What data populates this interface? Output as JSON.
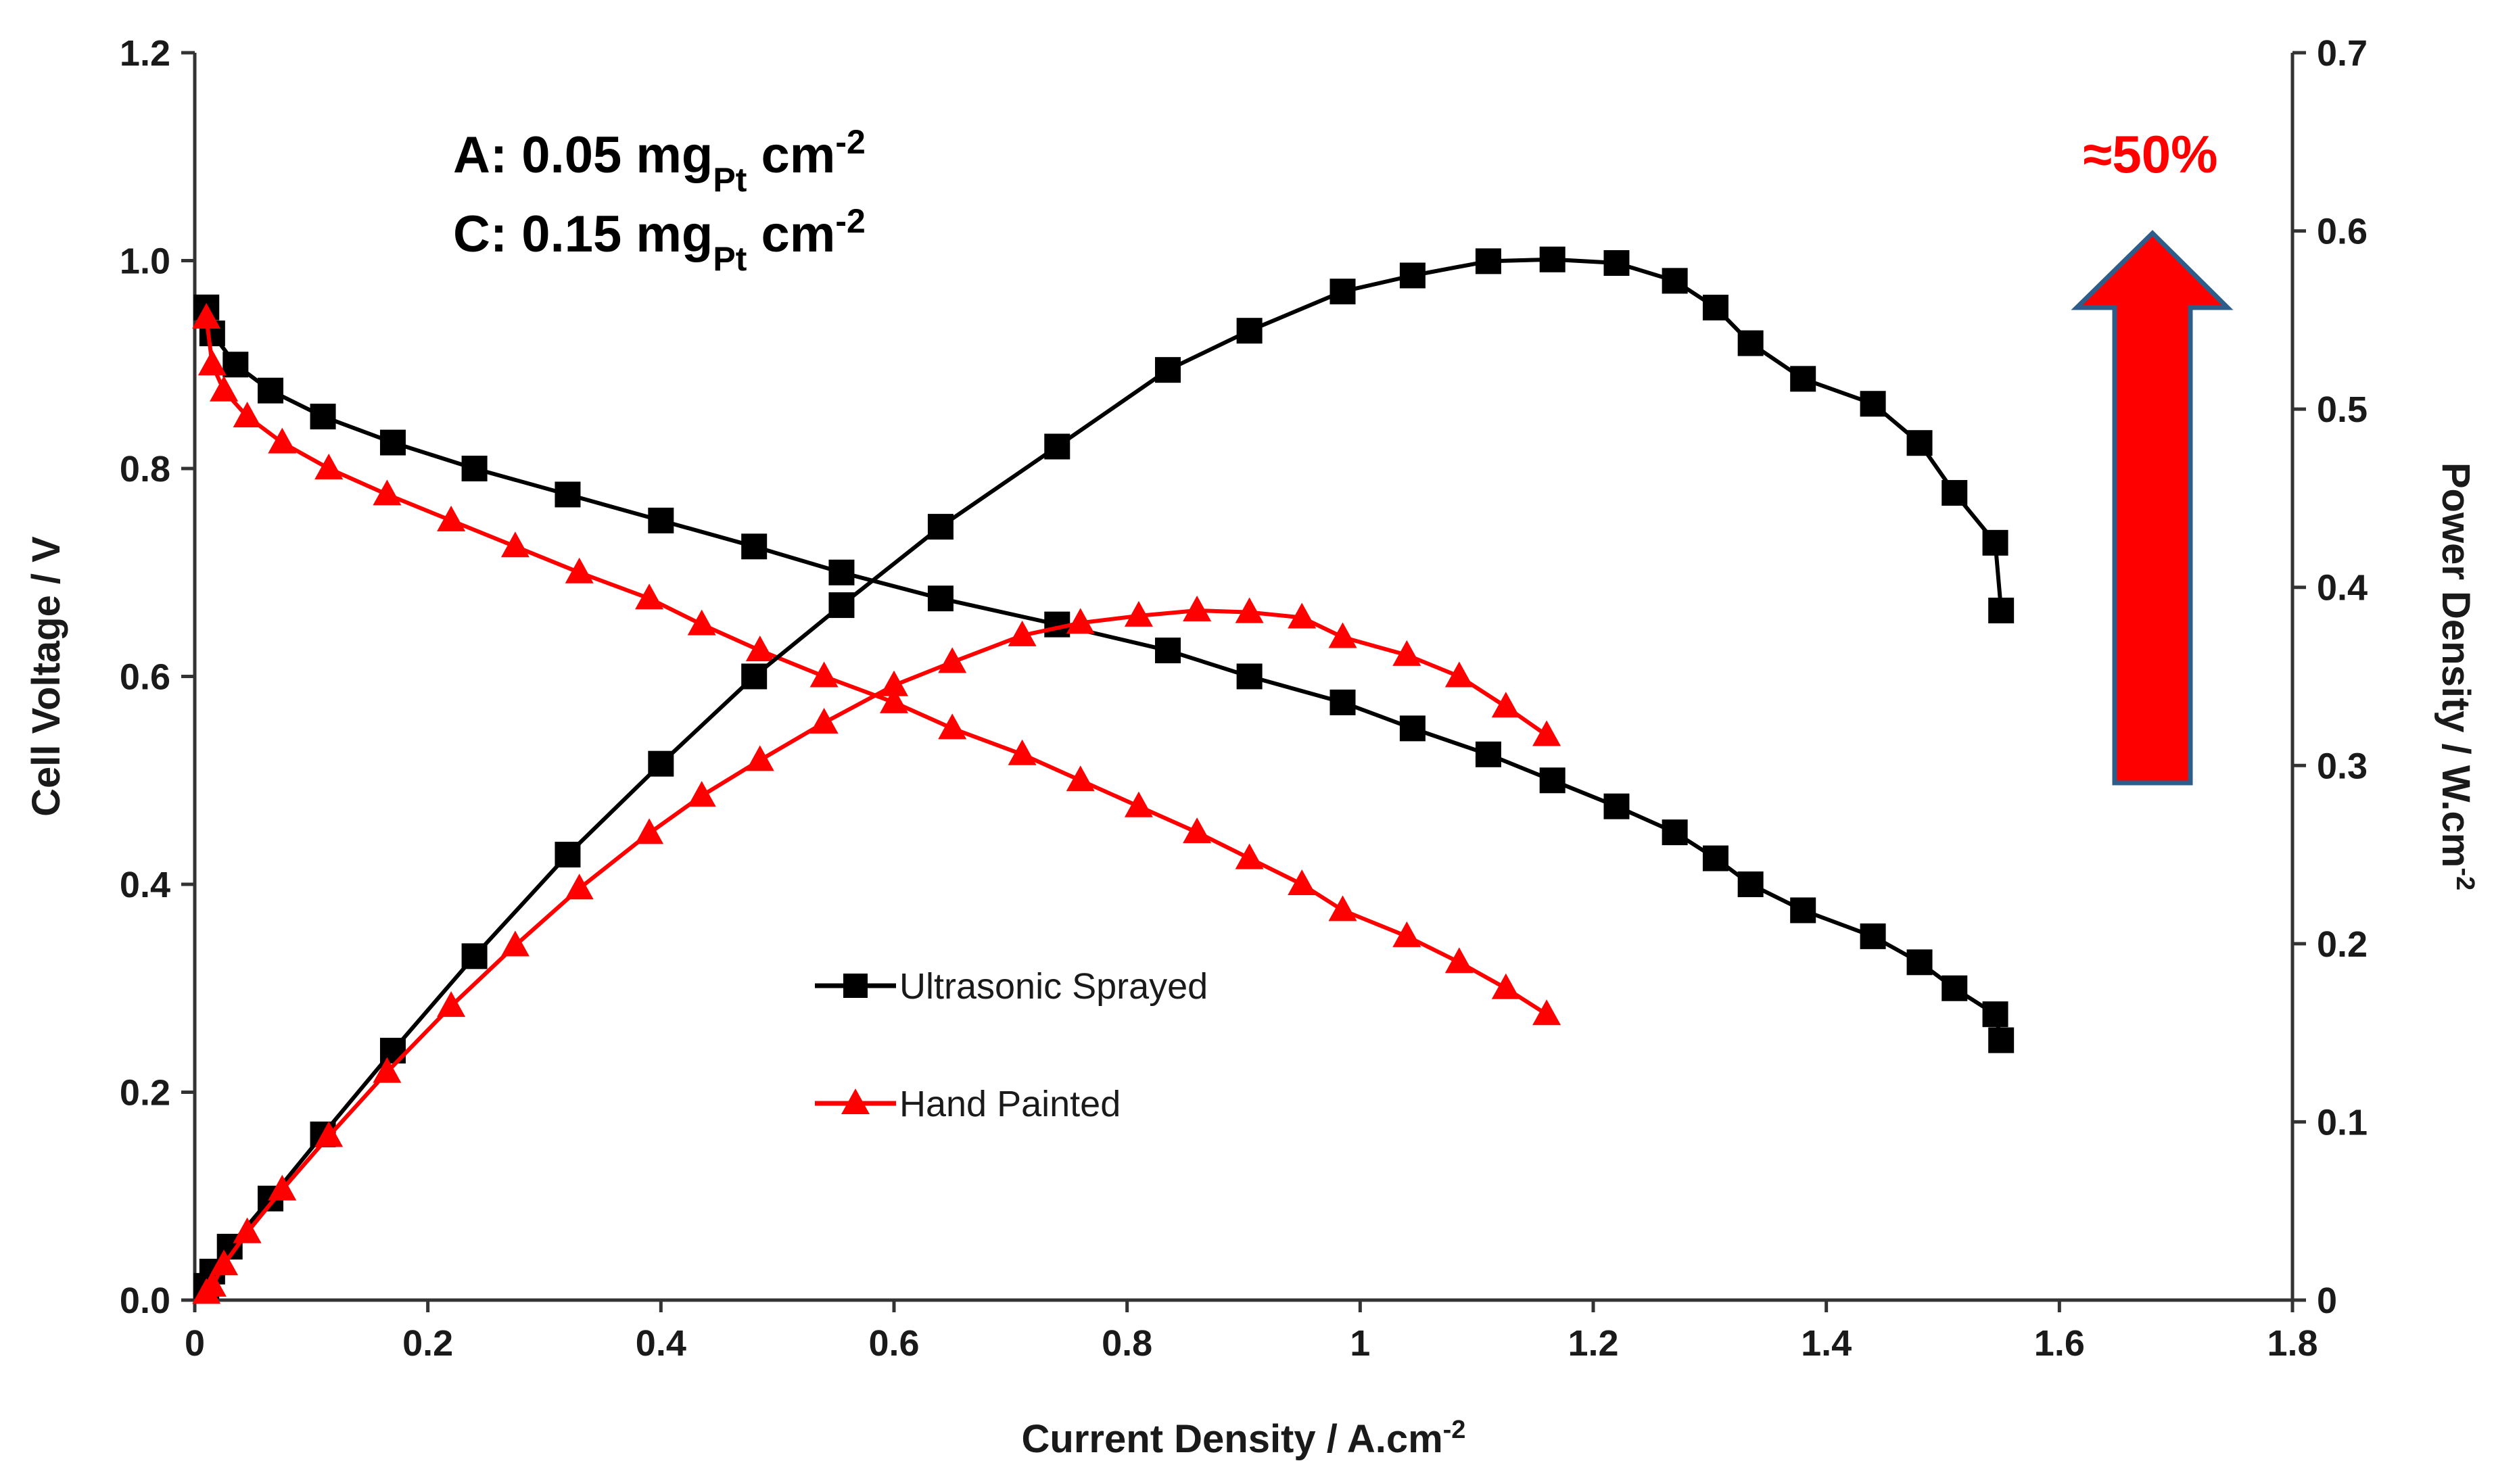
{
  "chart_data": {
    "type": "line",
    "xlabel": "Current Density / A.cm",
    "xlabel_sup": "-2",
    "ylabel": "Cell Voltage / V",
    "y2label": "Power Density / W.cm",
    "y2label_sup": "-2",
    "xlim": [
      0,
      1.8
    ],
    "ylim": [
      0,
      1.2
    ],
    "y2lim": [
      0,
      0.7
    ],
    "x_ticks": [
      "0",
      "0.2",
      "0.4",
      "0.6",
      "0.8",
      "1",
      "1.2",
      "1.4",
      "1.6",
      "1.8"
    ],
    "y_ticks": [
      "0.0",
      "0.2",
      "0.4",
      "0.6",
      "0.8",
      "1.0",
      "1.2"
    ],
    "y2_ticks": [
      "0",
      "0.1",
      "0.2",
      "0.3",
      "0.4",
      "0.5",
      "0.6",
      "0.7"
    ],
    "annotations": {
      "line1": {
        "prefix": "A: 0.05 mg",
        "sub": "Pt",
        "suffix": " cm",
        "sup": "-2"
      },
      "line2": {
        "prefix": "C: 0.15 mg",
        "sub": "Pt",
        "suffix": " cm",
        "sup": "-2"
      },
      "improvement": "≈50%"
    },
    "legend": [
      "Ultrasonic Sprayed",
      "Hand Painted"
    ],
    "series": [
      {
        "name": "Ultrasonic Sprayed",
        "kind": "voltage",
        "axis": "left",
        "color": "#000000",
        "marker": "square",
        "x": [
          0.01,
          0.015,
          0.035,
          0.065,
          0.11,
          0.17,
          0.24,
          0.32,
          0.4,
          0.48,
          0.555,
          0.64,
          0.74,
          0.835,
          0.905,
          0.985,
          1.045,
          1.11,
          1.165,
          1.22,
          1.27,
          1.305,
          1.335,
          1.38,
          1.44,
          1.48,
          1.51,
          1.545,
          1.55
        ],
        "values": [
          0.955,
          0.93,
          0.9,
          0.875,
          0.85,
          0.825,
          0.8,
          0.775,
          0.75,
          0.725,
          0.7,
          0.675,
          0.65,
          0.625,
          0.6,
          0.575,
          0.55,
          0.525,
          0.5,
          0.475,
          0.45,
          0.425,
          0.4,
          0.375,
          0.35,
          0.325,
          0.3,
          0.275,
          0.25
        ]
      },
      {
        "name": "Hand Painted",
        "kind": "voltage",
        "axis": "left",
        "color": "#ff0000",
        "marker": "triangle",
        "x": [
          0.01,
          0.015,
          0.025,
          0.045,
          0.075,
          0.115,
          0.165,
          0.22,
          0.275,
          0.33,
          0.39,
          0.435,
          0.485,
          0.54,
          0.6,
          0.65,
          0.71,
          0.76,
          0.81,
          0.86,
          0.905,
          0.95,
          0.985,
          1.04,
          1.085,
          1.125,
          1.16
        ],
        "values": [
          0.945,
          0.9,
          0.875,
          0.85,
          0.825,
          0.8,
          0.775,
          0.75,
          0.725,
          0.7,
          0.675,
          0.65,
          0.625,
          0.6,
          0.575,
          0.55,
          0.525,
          0.5,
          0.475,
          0.45,
          0.425,
          0.4,
          0.375,
          0.35,
          0.325,
          0.3,
          0.275
        ]
      },
      {
        "name": "Ultrasonic Sprayed",
        "kind": "power",
        "axis": "right",
        "color": "#000000",
        "marker": "square",
        "x": [
          0.01,
          0.015,
          0.03,
          0.065,
          0.11,
          0.17,
          0.24,
          0.32,
          0.4,
          0.48,
          0.555,
          0.64,
          0.74,
          0.835,
          0.905,
          0.985,
          1.045,
          1.11,
          1.165,
          1.22,
          1.27,
          1.305,
          1.335,
          1.38,
          1.44,
          1.48,
          1.51,
          1.545,
          1.55
        ],
        "values": [
          0.008,
          0.016,
          0.03,
          0.057,
          0.093,
          0.14,
          0.193,
          0.25,
          0.301,
          0.35,
          0.39,
          0.434,
          0.479,
          0.522,
          0.544,
          0.566,
          0.575,
          0.583,
          0.584,
          0.582,
          0.572,
          0.557,
          0.537,
          0.517,
          0.503,
          0.481,
          0.453,
          0.425,
          0.387
        ]
      },
      {
        "name": "Hand Painted",
        "kind": "power",
        "axis": "right",
        "color": "#ff0000",
        "marker": "triangle",
        "x": [
          0.01,
          0.015,
          0.025,
          0.045,
          0.075,
          0.115,
          0.165,
          0.22,
          0.275,
          0.33,
          0.39,
          0.435,
          0.485,
          0.54,
          0.6,
          0.65,
          0.71,
          0.76,
          0.81,
          0.86,
          0.905,
          0.95,
          0.985,
          1.04,
          1.085,
          1.125,
          1.16
        ],
        "values": [
          0.004,
          0.008,
          0.02,
          0.038,
          0.062,
          0.092,
          0.128,
          0.165,
          0.199,
          0.231,
          0.262,
          0.283,
          0.303,
          0.324,
          0.345,
          0.358,
          0.373,
          0.38,
          0.384,
          0.387,
          0.386,
          0.383,
          0.372,
          0.362,
          0.35,
          0.333,
          0.317
        ]
      }
    ],
    "colors": {
      "black": "#000000",
      "red": "#ff0000",
      "arrow_fill": "#ff0000",
      "arrow_stroke": "#2f5d8a"
    }
  }
}
